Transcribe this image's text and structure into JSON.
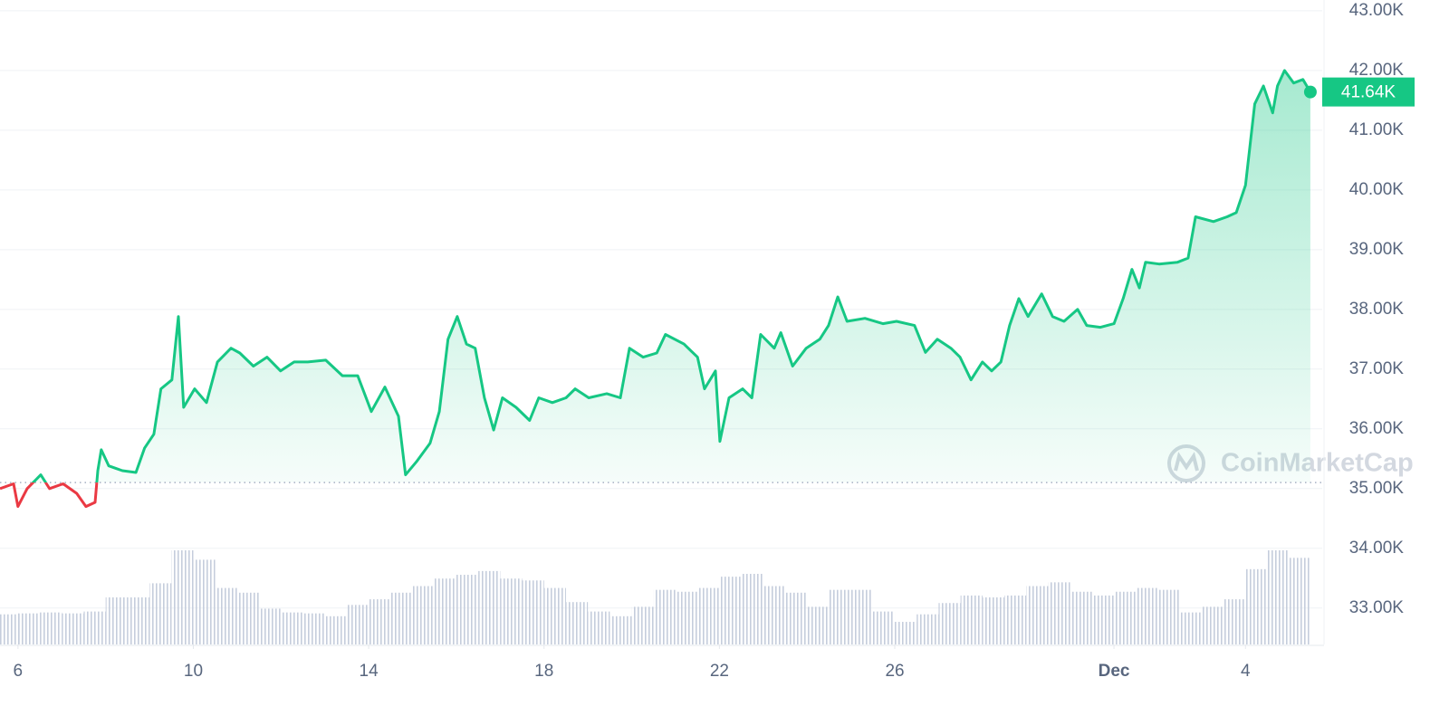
{
  "chart_data": {
    "type": "line",
    "x": [
      5.59,
      5.9,
      6.0,
      6.21,
      6.52,
      6.72,
      7.03,
      7.34,
      7.55,
      7.76,
      7.82,
      7.9,
      8.07,
      8.38,
      8.69,
      8.89,
      9.1,
      9.26,
      9.51,
      9.66,
      9.78,
      10.03,
      10.3,
      10.55,
      10.86,
      11.06,
      11.37,
      11.68,
      11.99,
      12.3,
      12.61,
      13.02,
      13.4,
      13.75,
      14.06,
      14.37,
      14.68,
      14.84,
      15.09,
      15.4,
      15.61,
      15.81,
      16.02,
      16.23,
      16.43,
      16.64,
      16.85,
      17.05,
      17.36,
      17.67,
      17.88,
      18.19,
      18.5,
      18.71,
      19.02,
      19.43,
      19.74,
      19.95,
      20.26,
      20.57,
      20.77,
      21.19,
      21.5,
      21.66,
      21.91,
      22.01,
      22.22,
      22.53,
      22.74,
      22.94,
      23.25,
      23.4,
      23.67,
      23.98,
      24.29,
      24.49,
      24.7,
      24.91,
      25.32,
      25.73,
      26.04,
      26.45,
      26.7,
      26.97,
      27.28,
      27.49,
      27.74,
      28.0,
      28.21,
      28.42,
      28.62,
      28.83,
      29.04,
      29.35,
      29.6,
      29.86,
      30.17,
      30.38,
      30.69,
      31.0,
      31.21,
      31.41,
      31.58,
      31.72,
      32.03,
      32.45,
      32.69,
      32.86,
      33.27,
      33.58,
      33.79,
      34.0,
      34.21,
      34.41,
      34.62,
      34.73,
      34.89,
      35.1,
      35.31,
      35.48
    ],
    "series": [
      {
        "name": "Price",
        "color": "#16c784",
        "down_color": "#ea3943",
        "values": [
          35000,
          35080,
          34700,
          35000,
          35230,
          35000,
          35080,
          34920,
          34700,
          34770,
          35300,
          35650,
          35380,
          35300,
          35270,
          35680,
          35910,
          36670,
          36820,
          37880,
          36360,
          36670,
          36440,
          37120,
          37350,
          37270,
          37050,
          37200,
          36970,
          37120,
          37120,
          37150,
          36890,
          36890,
          36290,
          36700,
          36210,
          35230,
          35450,
          35760,
          36290,
          37500,
          37880,
          37420,
          37350,
          36520,
          35980,
          36520,
          36360,
          36140,
          36520,
          36440,
          36520,
          36670,
          36520,
          36590,
          36520,
          37350,
          37200,
          37270,
          37580,
          37420,
          37200,
          36670,
          36970,
          35790,
          36520,
          36670,
          36520,
          37580,
          37350,
          37610,
          37050,
          37350,
          37500,
          37730,
          38210,
          37800,
          37850,
          37760,
          37800,
          37730,
          37280,
          37500,
          37350,
          37200,
          36820,
          37120,
          36970,
          37120,
          37730,
          38180,
          37880,
          38260,
          37880,
          37800,
          38000,
          37730,
          37700,
          37760,
          38180,
          38670,
          38360,
          38790,
          38760,
          38790,
          38860,
          39550,
          39470,
          39550,
          39620,
          40080,
          41440,
          41740,
          41290,
          41740,
          42000,
          41790,
          41850,
          41640
        ]
      }
    ],
    "baseline": 35100,
    "last_label": "41.64K",
    "xlim": [
      5.59,
      35.75
    ],
    "ylim": [
      32390,
      43180
    ],
    "yticks": [
      {
        "value": 43000,
        "label": "43.00K"
      },
      {
        "value": 42000,
        "label": "42.00K"
      },
      {
        "value": 41000,
        "label": "41.00K"
      },
      {
        "value": 40000,
        "label": "40.00K"
      },
      {
        "value": 39000,
        "label": "39.00K"
      },
      {
        "value": 38000,
        "label": "38.00K"
      },
      {
        "value": 37000,
        "label": "37.00K"
      },
      {
        "value": 36000,
        "label": "36.00K"
      },
      {
        "value": 35000,
        "label": "35.00K"
      },
      {
        "value": 34000,
        "label": "34.00K"
      },
      {
        "value": 33000,
        "label": "33.00K"
      }
    ],
    "xticks": [
      6,
      10,
      14,
      18,
      22,
      26,
      {
        "value": 31,
        "label": "Dec",
        "bold": true
      },
      {
        "value": 34,
        "label": "4"
      }
    ],
    "grid": true,
    "volume": {
      "color": "#cfd6e4",
      "x": [
        5.75,
        6.25,
        6.75,
        7.25,
        7.75,
        8.25,
        8.75,
        9.25,
        9.75,
        10.25,
        10.75,
        11.25,
        11.75,
        12.25,
        12.75,
        13.25,
        13.75,
        14.25,
        14.75,
        15.25,
        15.75,
        16.25,
        16.75,
        17.25,
        17.75,
        18.25,
        18.75,
        19.25,
        19.75,
        20.25,
        20.75,
        21.25,
        21.75,
        22.25,
        22.75,
        23.25,
        23.75,
        24.25,
        24.75,
        25.25,
        25.75,
        26.25,
        26.75,
        27.25,
        27.75,
        28.25,
        28.75,
        29.25,
        29.75,
        30.25,
        30.75,
        31.25,
        31.75,
        32.25,
        32.75,
        33.25,
        33.75,
        34.25,
        34.75,
        35.25
      ],
      "values": [
        32,
        33,
        34,
        33,
        35,
        50,
        50,
        65,
        100,
        90,
        60,
        55,
        38,
        34,
        33,
        30,
        42,
        48,
        55,
        62,
        70,
        74,
        78,
        70,
        68,
        60,
        45,
        35,
        30,
        40,
        58,
        56,
        60,
        72,
        75,
        62,
        55,
        40,
        58,
        58,
        35,
        24,
        32,
        44,
        52,
        50,
        52,
        62,
        66,
        56,
        52,
        56,
        60,
        58,
        34,
        40,
        48,
        80,
        100,
        92
      ]
    },
    "watermark": "CoinMarketCap"
  }
}
